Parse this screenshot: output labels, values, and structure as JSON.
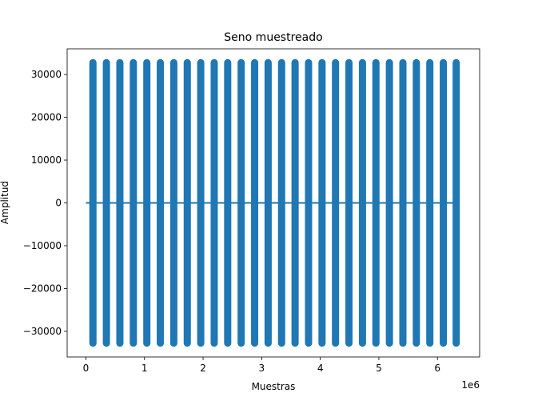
{
  "chart_data": {
    "type": "scatter",
    "title": "Seno muestreado",
    "xlabel": "Muestras",
    "ylabel": "Amplitud",
    "x_multiplier_label": "1e6",
    "xlim": [
      -0.32,
      6.72
    ],
    "ylim": [
      -36000,
      36000
    ],
    "x_ticks": [
      0,
      1,
      2,
      3,
      4,
      5,
      6
    ],
    "x_tick_labels": [
      "0",
      "1",
      "2",
      "3",
      "4",
      "5",
      "6"
    ],
    "y_ticks": [
      -30000,
      -20000,
      -10000,
      0,
      10000,
      20000,
      30000
    ],
    "y_tick_labels": [
      "−30000",
      "−20000",
      "−10000",
      "0",
      "10000",
      "20000",
      "30000"
    ],
    "grid": false,
    "legend": "none",
    "series": [
      {
        "kind": "line",
        "x": [
          0,
          6.3
        ],
        "y": [
          0,
          0
        ]
      },
      {
        "kind": "sampled_sine_bands",
        "amplitude": 32767,
        "band_centers": [
          0.12,
          0.35,
          0.58,
          0.81,
          1.04,
          1.27,
          1.5,
          1.73,
          1.96,
          2.19,
          2.42,
          2.65,
          2.88,
          3.11,
          3.34,
          3.57,
          3.8,
          4.03,
          4.26,
          4.49,
          4.72,
          4.95,
          5.18,
          5.41,
          5.64,
          5.87,
          6.1,
          6.32
        ]
      }
    ],
    "colors": {
      "series": "#1f77b4",
      "axes": "#000000",
      "background": "#ffffff"
    }
  }
}
